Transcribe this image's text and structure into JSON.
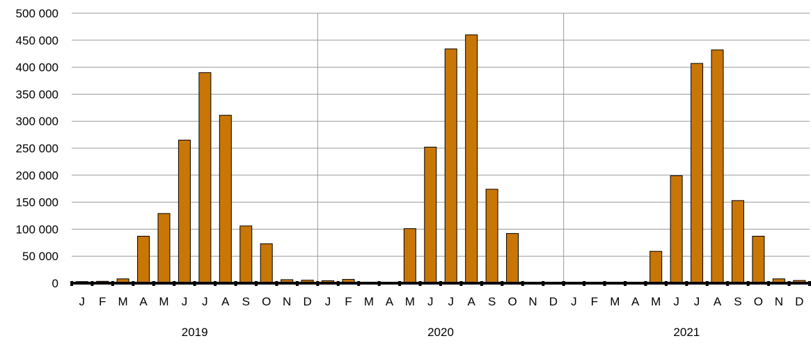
{
  "chart_data": {
    "type": "bar",
    "title": "",
    "xlabel": "",
    "ylabel": "",
    "ylim": [
      0,
      500000
    ],
    "grid": true,
    "y_ticks": [
      0,
      50000,
      100000,
      150000,
      200000,
      250000,
      300000,
      350000,
      400000,
      450000,
      500000
    ],
    "y_tick_labels": [
      "0",
      "50 000",
      "100 000",
      "150 000",
      "200 000",
      "250 000",
      "300 000",
      "350 000",
      "400 000",
      "450 000",
      "500 000"
    ],
    "month_labels": [
      "J",
      "F",
      "M",
      "A",
      "M",
      "J",
      "J",
      "A",
      "S",
      "O",
      "N",
      "D",
      "J",
      "F",
      "M",
      "A",
      "M",
      "J",
      "J",
      "A",
      "S",
      "O",
      "N",
      "D",
      "J",
      "F",
      "M",
      "A",
      "M",
      "J",
      "J",
      "A",
      "S",
      "O",
      "N",
      "D"
    ],
    "years": [
      "2019",
      "2020",
      "2021"
    ],
    "values": [
      3000,
      3500,
      8000,
      87000,
      129000,
      265000,
      390000,
      311000,
      106000,
      73000,
      6500,
      5500,
      4500,
      7000,
      2000,
      0,
      101000,
      252000,
      434000,
      460000,
      174000,
      92000,
      0,
      0,
      0,
      0,
      0,
      0,
      59000,
      199000,
      407000,
      432000,
      153000,
      87000,
      8000,
      5000
    ],
    "bar_color": "#c87606",
    "bar_edge_color": "#000000",
    "grid_color": "#999999"
  }
}
